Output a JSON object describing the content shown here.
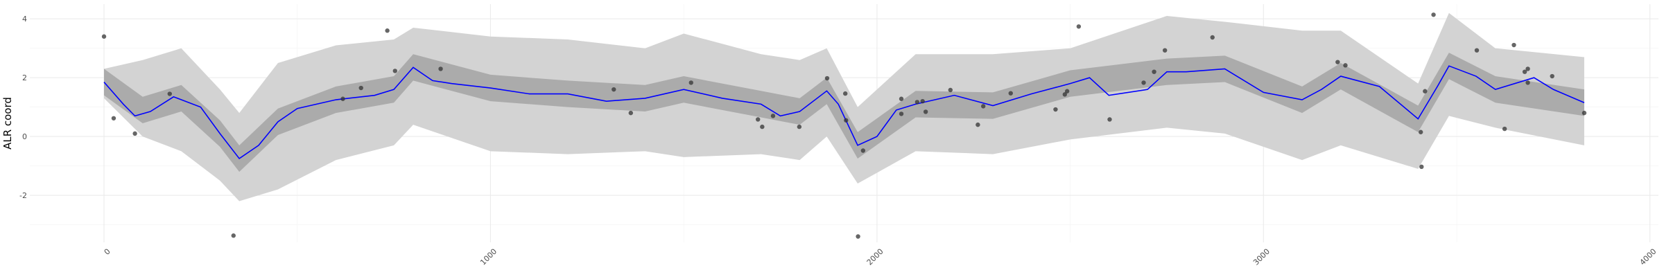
{
  "chart_data": {
    "type": "scatter",
    "y_label": "ALR coord",
    "xlim": [
      -192,
      4022
    ],
    "ylim": [
      -3.6,
      4.5
    ],
    "xticks": [
      0,
      1000,
      2000,
      3000,
      4000
    ],
    "yticks": [
      -2,
      0,
      2,
      4
    ],
    "xminor": [
      500,
      1500,
      2500,
      3500
    ],
    "yminor": [
      -3,
      -1,
      1,
      3
    ],
    "grid": true,
    "points": {
      "color": "#333333",
      "x": [
        0,
        25,
        80,
        170,
        335,
        618,
        665,
        733,
        753,
        871,
        1319,
        1363,
        1519,
        1692,
        1703,
        1731,
        1799,
        1871,
        1918,
        1920,
        1951,
        1964,
        2063,
        2063,
        2104,
        2118,
        2126,
        2190,
        2261,
        2275,
        2346,
        2462,
        2486,
        2492,
        2522,
        2602,
        2690,
        2717,
        2745,
        2868,
        3192,
        3212,
        3407,
        3409,
        3418,
        3440,
        3552,
        3624,
        3648,
        3676,
        3684,
        3684,
        3747,
        3830
      ],
      "y": [
        3.4,
        0.62,
        0.1,
        1.45,
        -3.37,
        1.28,
        1.65,
        3.6,
        2.23,
        2.3,
        1.6,
        0.8,
        1.83,
        0.58,
        0.33,
        0.7,
        0.33,
        1.98,
        1.46,
        0.55,
        -3.4,
        -0.48,
        1.28,
        0.77,
        1.17,
        1.2,
        0.84,
        1.58,
        0.4,
        1.03,
        1.47,
        0.92,
        1.43,
        1.54,
        3.74,
        0.58,
        1.83,
        2.2,
        2.93,
        3.37,
        2.53,
        2.42,
        0.15,
        -1.03,
        1.54,
        4.14,
        2.93,
        0.26,
        3.11,
        2.2,
        2.3,
        1.83,
        2.05,
        0.8
      ]
    },
    "smooth": {
      "color": "#0000ff",
      "x": [
        0,
        50,
        80,
        120,
        180,
        250,
        300,
        350,
        400,
        450,
        500,
        600,
        700,
        750,
        800,
        850,
        900,
        1000,
        1100,
        1200,
        1300,
        1400,
        1500,
        1600,
        1700,
        1750,
        1800,
        1870,
        1900,
        1950,
        2000,
        2050,
        2100,
        2200,
        2300,
        2400,
        2500,
        2550,
        2600,
        2700,
        2750,
        2800,
        2900,
        3000,
        3100,
        3150,
        3200,
        3300,
        3400,
        3450,
        3480,
        3550,
        3600,
        3700,
        3750,
        3830
      ],
      "y": [
        1.85,
        1.1,
        0.7,
        0.85,
        1.35,
        1.0,
        0.1,
        -0.75,
        -0.3,
        0.5,
        0.95,
        1.25,
        1.4,
        1.6,
        2.35,
        1.9,
        1.8,
        1.65,
        1.45,
        1.45,
        1.2,
        1.3,
        1.6,
        1.3,
        1.1,
        0.7,
        0.85,
        1.55,
        1.1,
        -0.3,
        0.0,
        0.9,
        1.1,
        1.4,
        1.05,
        1.45,
        1.8,
        2.0,
        1.4,
        1.6,
        2.2,
        2.2,
        2.3,
        1.5,
        1.25,
        1.6,
        2.05,
        1.7,
        0.6,
        1.7,
        2.4,
        2.05,
        1.6,
        2.0,
        1.6,
        1.15
      ]
    },
    "bands": {
      "x": [
        0,
        100,
        200,
        300,
        350,
        450,
        600,
        750,
        800,
        1000,
        1200,
        1400,
        1500,
        1700,
        1800,
        1870,
        1950,
        2100,
        2300,
        2500,
        2750,
        2900,
        3100,
        3200,
        3400,
        3480,
        3600,
        3830
      ],
      "outer": {
        "color": "#d3d3d3",
        "lower": [
          1.3,
          0.0,
          -0.5,
          -1.5,
          -2.2,
          -1.8,
          -0.8,
          -0.3,
          0.4,
          -0.5,
          -0.6,
          -0.5,
          -0.7,
          -0.6,
          -0.8,
          0.0,
          -1.6,
          -0.5,
          -0.6,
          -0.1,
          0.3,
          0.1,
          -0.8,
          -0.3,
          -1.1,
          0.7,
          0.3,
          -0.3
        ],
        "upper": [
          2.3,
          2.6,
          3.0,
          1.6,
          0.8,
          2.5,
          3.1,
          3.3,
          3.7,
          3.4,
          3.3,
          3.0,
          3.5,
          2.8,
          2.6,
          3.0,
          1.0,
          2.8,
          2.8,
          3.0,
          4.1,
          3.9,
          3.6,
          3.6,
          1.8,
          4.2,
          3.0,
          2.7
        ]
      },
      "inner": {
        "color": "#ababab",
        "lower": [
          1.4,
          0.45,
          0.85,
          -0.35,
          -1.2,
          0.05,
          0.8,
          1.15,
          1.9,
          1.2,
          1.0,
          0.85,
          1.15,
          0.65,
          0.4,
          1.1,
          -0.75,
          0.65,
          0.6,
          1.35,
          1.75,
          1.85,
          0.8,
          1.6,
          0.15,
          1.95,
          1.15,
          0.7
        ],
        "upper": [
          2.3,
          1.35,
          1.75,
          0.55,
          -0.3,
          0.95,
          1.7,
          2.05,
          2.8,
          2.1,
          1.9,
          1.75,
          2.05,
          1.55,
          1.3,
          2.0,
          0.15,
          1.55,
          1.5,
          2.25,
          2.65,
          2.75,
          1.7,
          2.5,
          1.05,
          2.85,
          2.05,
          1.6
        ]
      }
    }
  }
}
